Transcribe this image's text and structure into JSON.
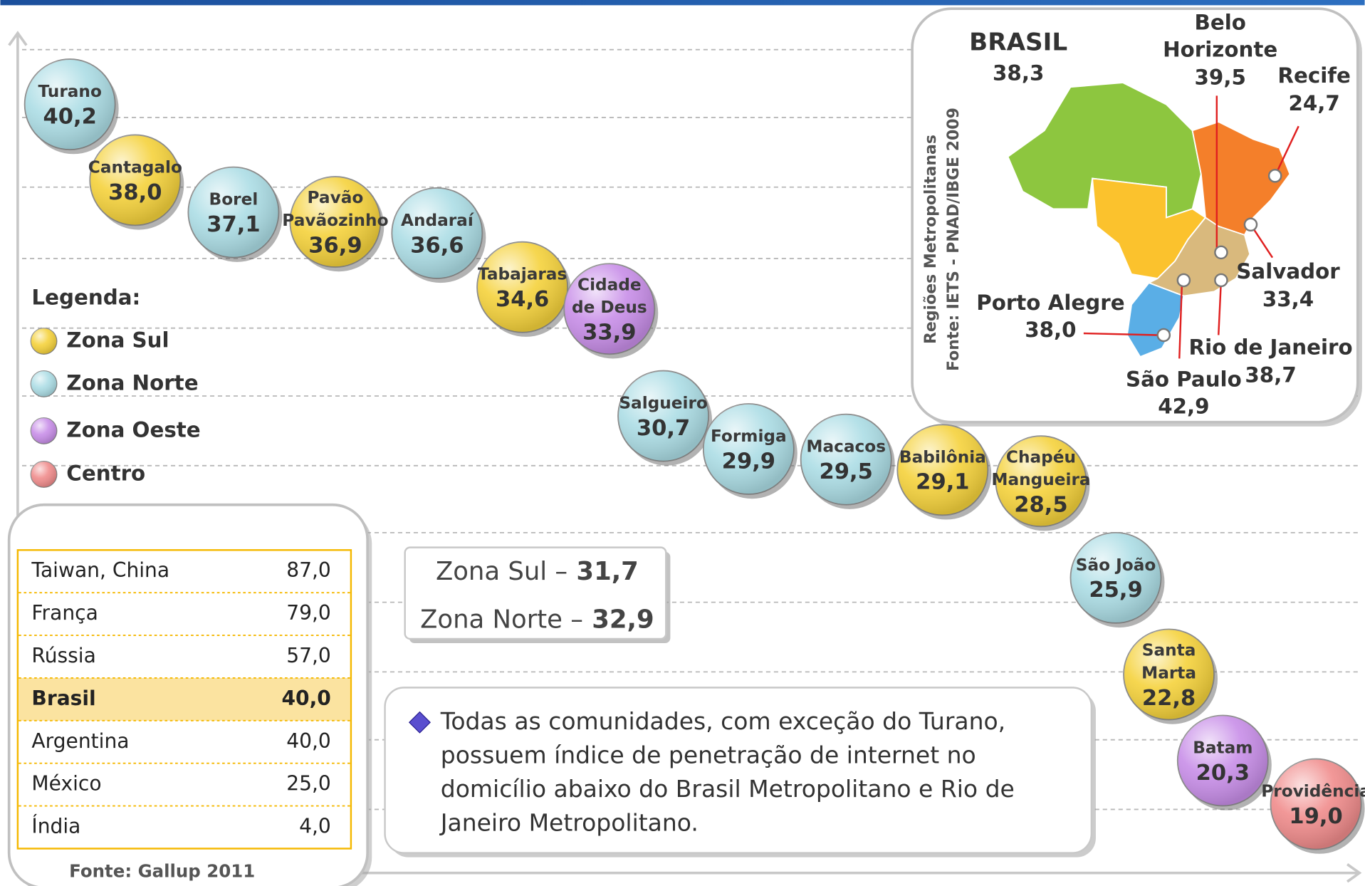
{
  "legend": {
    "title": "Legenda:",
    "items": [
      {
        "label": "Zona Sul",
        "color": "#f5d23c"
      },
      {
        "label": "Zona Norte",
        "color": "#acdde5"
      },
      {
        "label": "Zona Oeste",
        "color": "#c88ee8"
      },
      {
        "label": "Centro",
        "color": "#f08c8c"
      }
    ]
  },
  "communities": [
    {
      "name_lines": [
        "Turano"
      ],
      "value": "40,2",
      "color": "#acdde5"
    },
    {
      "name_lines": [
        "Cantagalo"
      ],
      "value": "38,0",
      "color": "#f5d23c"
    },
    {
      "name_lines": [
        "Borel"
      ],
      "value": "37,1",
      "color": "#acdde5"
    },
    {
      "name_lines": [
        "Pavão",
        "Pavãozinho"
      ],
      "value": "36,9",
      "color": "#f5d23c"
    },
    {
      "name_lines": [
        "Andaraí"
      ],
      "value": "36,6",
      "color": "#acdde5"
    },
    {
      "name_lines": [
        "Tabajaras"
      ],
      "value": "34,6",
      "color": "#f5d23c"
    },
    {
      "name_lines": [
        "Cidade",
        "de Deus"
      ],
      "value": "33,9",
      "color": "#c88ee8"
    },
    {
      "name_lines": [
        "Salgueiro"
      ],
      "value": "30,7",
      "color": "#acdde5"
    },
    {
      "name_lines": [
        "Formiga"
      ],
      "value": "29,9",
      "color": "#acdde5"
    },
    {
      "name_lines": [
        "Macacos"
      ],
      "value": "29,5",
      "color": "#acdde5"
    },
    {
      "name_lines": [
        "Babilônia"
      ],
      "value": "29,1",
      "color": "#f5d23c"
    },
    {
      "name_lines": [
        "Chapéu",
        "Mangueira"
      ],
      "value": "28,5",
      "color": "#f5d23c"
    },
    {
      "name_lines": [
        "São João"
      ],
      "value": "25,9",
      "color": "#acdde5"
    },
    {
      "name_lines": [
        "Santa",
        "Marta"
      ],
      "value": "22,8",
      "color": "#f5d23c"
    },
    {
      "name_lines": [
        "Batam"
      ],
      "value": "20,3",
      "color": "#c88ee8"
    },
    {
      "name_lines": [
        "Providência"
      ],
      "value": "19,0",
      "color": "#f08c8c"
    }
  ],
  "map": {
    "side_label_lines": [
      "Regiões Metropolitanas",
      "Fonte: IETS - PNAD/IBGE 2009"
    ],
    "labels": [
      {
        "name_lines": [
          "BRASIL"
        ],
        "value": "38,3"
      },
      {
        "name_lines": [
          "Belo",
          "Horizonte"
        ],
        "value": "39,5"
      },
      {
        "name_lines": [
          "Recife"
        ],
        "value": "24,7"
      },
      {
        "name_lines": [
          "Salvador"
        ],
        "value": "33,4"
      },
      {
        "name_lines": [
          "Rio de Janeiro"
        ],
        "value": "38,7"
      },
      {
        "name_lines": [
          "São Paulo"
        ],
        "value": "42,9"
      },
      {
        "name_lines": [
          "Porto Alegre"
        ],
        "value": "38,0"
      }
    ]
  },
  "country_table": {
    "rows": [
      [
        "Taiwan, China",
        "87,0"
      ],
      [
        "França",
        "79,0"
      ],
      [
        "Rússia",
        "57,0"
      ],
      [
        "Brasil",
        "40,0"
      ],
      [
        "Argentina",
        "40,0"
      ],
      [
        "México",
        "25,0"
      ],
      [
        "Índia",
        "4,0"
      ]
    ],
    "source": "Fonte: Gallup 2011"
  },
  "zone_averages": [
    [
      "Zona Sul",
      "–",
      "31,7"
    ],
    [
      "Zona Norte",
      "–",
      "32,9"
    ]
  ],
  "note": {
    "lines": [
      "Todas as comunidades, com exceção do Turano,",
      "possuem índice de penetração de internet no",
      "domicílio abaixo do Brasil Metropolitano e Rio de",
      "Janeiro Metropolitano."
    ]
  }
}
